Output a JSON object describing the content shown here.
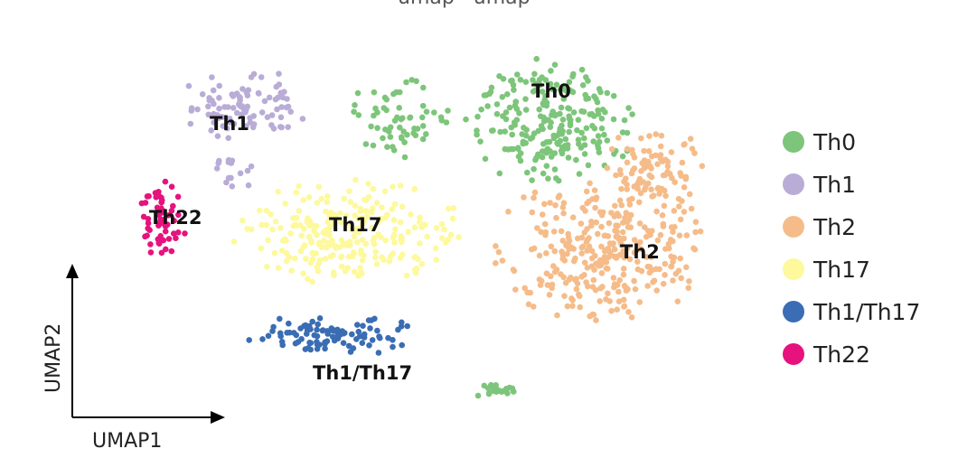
{
  "chart_data": {
    "type": "scatter",
    "title": "",
    "xlabel": "UMAP1",
    "ylabel": "UMAP2",
    "grid": false,
    "legend_placement": "right",
    "series": [
      {
        "name": "Th0",
        "color": "#7dc57a"
      },
      {
        "name": "Th1",
        "color": "#b9acd6"
      },
      {
        "name": "Th2",
        "color": "#f5bc8a"
      },
      {
        "name": "Th17",
        "color": "#fdf99c"
      },
      {
        "name": "Th1/Th17",
        "color": "#3a6db3"
      },
      {
        "name": "Th22",
        "color": "#e6127e"
      }
    ],
    "cluster_labels": [
      "Th0",
      "Th1",
      "Th2",
      "Th17",
      "Th1/Th17",
      "Th22"
    ]
  }
}
